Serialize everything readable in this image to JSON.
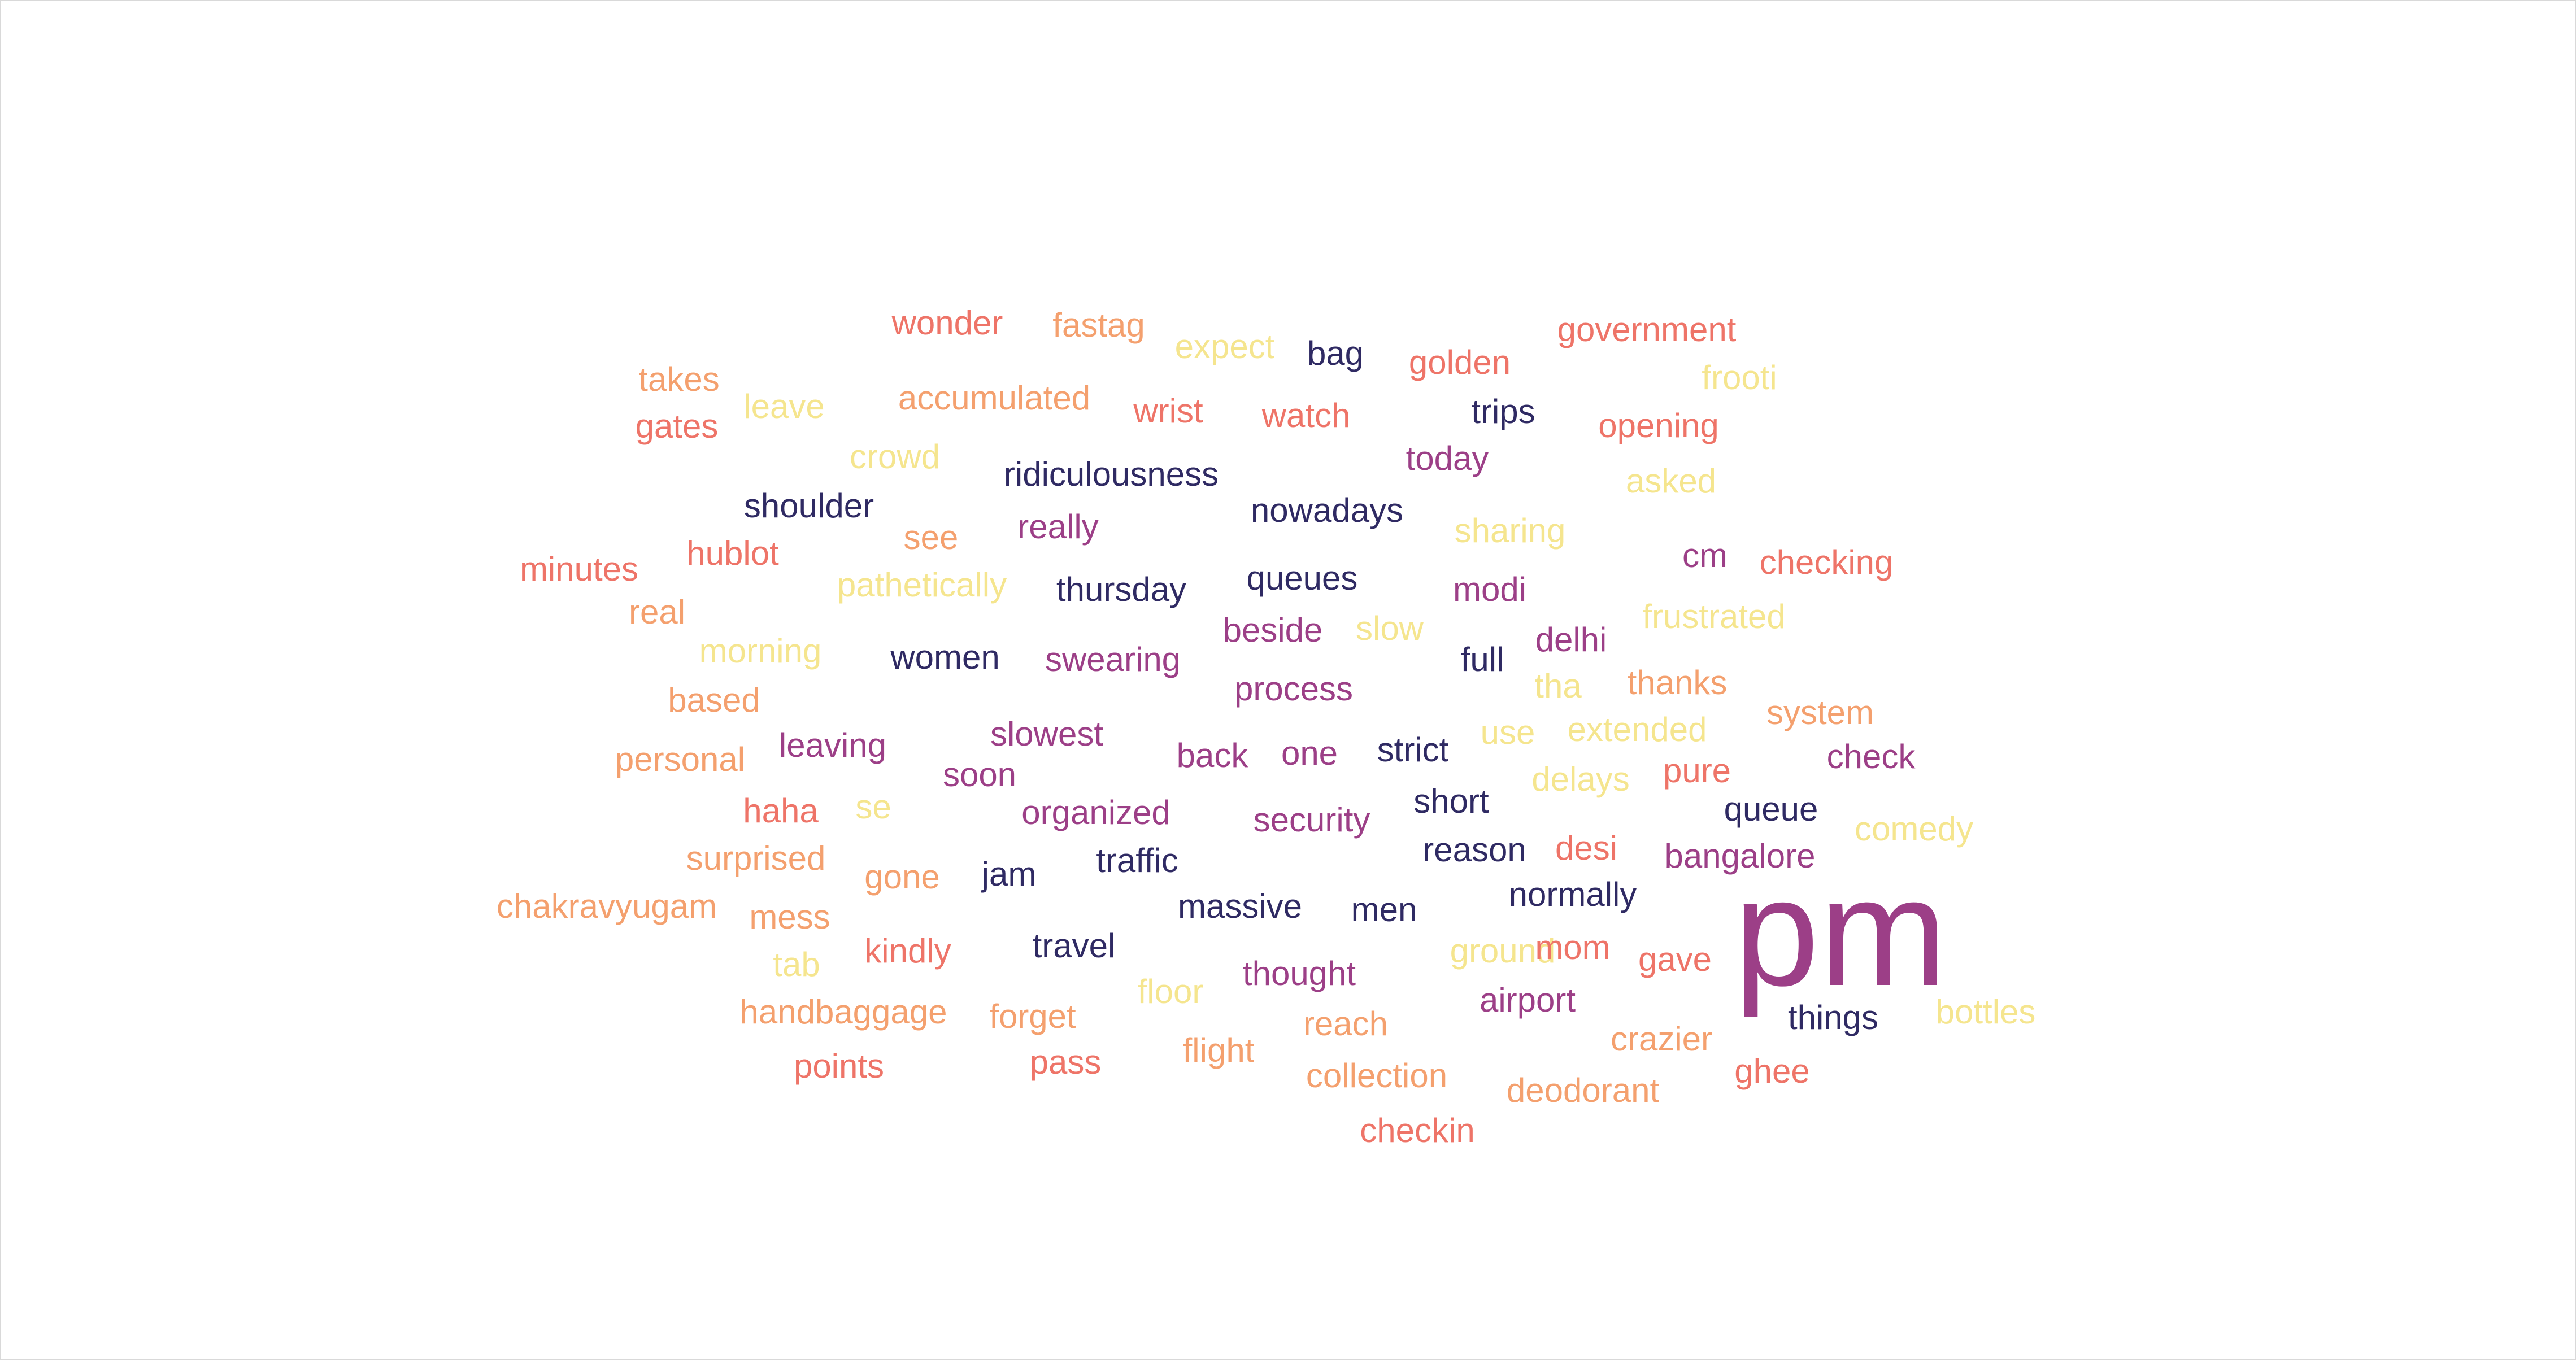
{
  "cloud": {
    "words": [
      {
        "text": "wonder",
        "tone": "salmon"
      },
      {
        "text": "fastag",
        "tone": "orange"
      },
      {
        "text": "expect",
        "tone": "yellow"
      },
      {
        "text": "bag",
        "tone": "navy"
      },
      {
        "text": "golden",
        "tone": "salmon"
      },
      {
        "text": "government",
        "tone": "salmon"
      },
      {
        "text": "takes",
        "tone": "orange"
      },
      {
        "text": "frooti",
        "tone": "yellow"
      },
      {
        "text": "leave",
        "tone": "yellow"
      },
      {
        "text": "accumulated",
        "tone": "orange"
      },
      {
        "text": "wrist",
        "tone": "salmon"
      },
      {
        "text": "watch",
        "tone": "salmon"
      },
      {
        "text": "trips",
        "tone": "navy"
      },
      {
        "text": "gates",
        "tone": "salmon"
      },
      {
        "text": "opening",
        "tone": "salmon"
      },
      {
        "text": "crowd",
        "tone": "yellow"
      },
      {
        "text": "today",
        "tone": "plum"
      },
      {
        "text": "ridiculousness",
        "tone": "navy"
      },
      {
        "text": "asked",
        "tone": "yellow"
      },
      {
        "text": "shoulder",
        "tone": "navy"
      },
      {
        "text": "nowadays",
        "tone": "navy"
      },
      {
        "text": "really",
        "tone": "plum"
      },
      {
        "text": "sharing",
        "tone": "yellow"
      },
      {
        "text": "see",
        "tone": "orange"
      },
      {
        "text": "hublot",
        "tone": "salmon"
      },
      {
        "text": "cm",
        "tone": "plum"
      },
      {
        "text": "checking",
        "tone": "salmon"
      },
      {
        "text": "minutes",
        "tone": "salmon"
      },
      {
        "text": "queues",
        "tone": "navy"
      },
      {
        "text": "pathetically",
        "tone": "yellow"
      },
      {
        "text": "thursday",
        "tone": "navy"
      },
      {
        "text": "modi",
        "tone": "plum"
      },
      {
        "text": "real",
        "tone": "orange"
      },
      {
        "text": "frustrated",
        "tone": "yellow"
      },
      {
        "text": "beside",
        "tone": "plum"
      },
      {
        "text": "slow",
        "tone": "yellow"
      },
      {
        "text": "delhi",
        "tone": "plum"
      },
      {
        "text": "morning",
        "tone": "yellow"
      },
      {
        "text": "women",
        "tone": "navy"
      },
      {
        "text": "swearing",
        "tone": "plum"
      },
      {
        "text": "full",
        "tone": "navy"
      },
      {
        "text": "thanks",
        "tone": "orange"
      },
      {
        "text": "tha",
        "tone": "yellow"
      },
      {
        "text": "based",
        "tone": "orange"
      },
      {
        "text": "process",
        "tone": "plum"
      },
      {
        "text": "system",
        "tone": "orange"
      },
      {
        "text": "extended",
        "tone": "yellow"
      },
      {
        "text": "slowest",
        "tone": "plum"
      },
      {
        "text": "use",
        "tone": "yellow"
      },
      {
        "text": "leaving",
        "tone": "plum"
      },
      {
        "text": "strict",
        "tone": "navy"
      },
      {
        "text": "back",
        "tone": "plum"
      },
      {
        "text": "one",
        "tone": "plum"
      },
      {
        "text": "check",
        "tone": "plum"
      },
      {
        "text": "personal",
        "tone": "orange"
      },
      {
        "text": "soon",
        "tone": "plum"
      },
      {
        "text": "delays",
        "tone": "yellow"
      },
      {
        "text": "pure",
        "tone": "salmon"
      },
      {
        "text": "short",
        "tone": "navy"
      },
      {
        "text": "haha",
        "tone": "salmon"
      },
      {
        "text": "se",
        "tone": "yellow"
      },
      {
        "text": "organized",
        "tone": "plum"
      },
      {
        "text": "queue",
        "tone": "navy"
      },
      {
        "text": "security",
        "tone": "plum"
      },
      {
        "text": "comedy",
        "tone": "yellow"
      },
      {
        "text": "surprised",
        "tone": "orange"
      },
      {
        "text": "traffic",
        "tone": "navy"
      },
      {
        "text": "reason",
        "tone": "navy"
      },
      {
        "text": "desi",
        "tone": "salmon"
      },
      {
        "text": "bangalore",
        "tone": "plum"
      },
      {
        "text": "gone",
        "tone": "orange"
      },
      {
        "text": "jam",
        "tone": "navy"
      },
      {
        "text": "normally",
        "tone": "navy"
      },
      {
        "text": "chakravyugam",
        "tone": "orange"
      },
      {
        "text": "massive",
        "tone": "navy"
      },
      {
        "text": "men",
        "tone": "navy"
      },
      {
        "text": "mess",
        "tone": "orange"
      },
      {
        "text": "pm",
        "tone": "plum",
        "big": true
      },
      {
        "text": "kindly",
        "tone": "salmon"
      },
      {
        "text": "travel",
        "tone": "navy"
      },
      {
        "text": "ground",
        "tone": "yellow"
      },
      {
        "text": "mom",
        "tone": "salmon"
      },
      {
        "text": "gave",
        "tone": "salmon"
      },
      {
        "text": "tab",
        "tone": "yellow"
      },
      {
        "text": "thought",
        "tone": "plum"
      },
      {
        "text": "floor",
        "tone": "yellow"
      },
      {
        "text": "airport",
        "tone": "plum"
      },
      {
        "text": "handbaggage",
        "tone": "orange"
      },
      {
        "text": "forget",
        "tone": "orange"
      },
      {
        "text": "things",
        "tone": "navy"
      },
      {
        "text": "bottles",
        "tone": "yellow"
      },
      {
        "text": "reach",
        "tone": "orange"
      },
      {
        "text": "crazier",
        "tone": "orange"
      },
      {
        "text": "flight",
        "tone": "orange"
      },
      {
        "text": "points",
        "tone": "salmon"
      },
      {
        "text": "pass",
        "tone": "salmon"
      },
      {
        "text": "collection",
        "tone": "orange"
      },
      {
        "text": "ghee",
        "tone": "salmon"
      },
      {
        "text": "deodorant",
        "tone": "orange"
      },
      {
        "text": "checkin",
        "tone": "salmon"
      }
    ]
  },
  "colors": {
    "navy": "#2f2a63",
    "plum": "#9c3f87",
    "salmon": "#ee7468",
    "orange": "#f4a06e",
    "yellow": "#f5e58e",
    "border": "#d9d9d9",
    "background": "#ffffff"
  }
}
